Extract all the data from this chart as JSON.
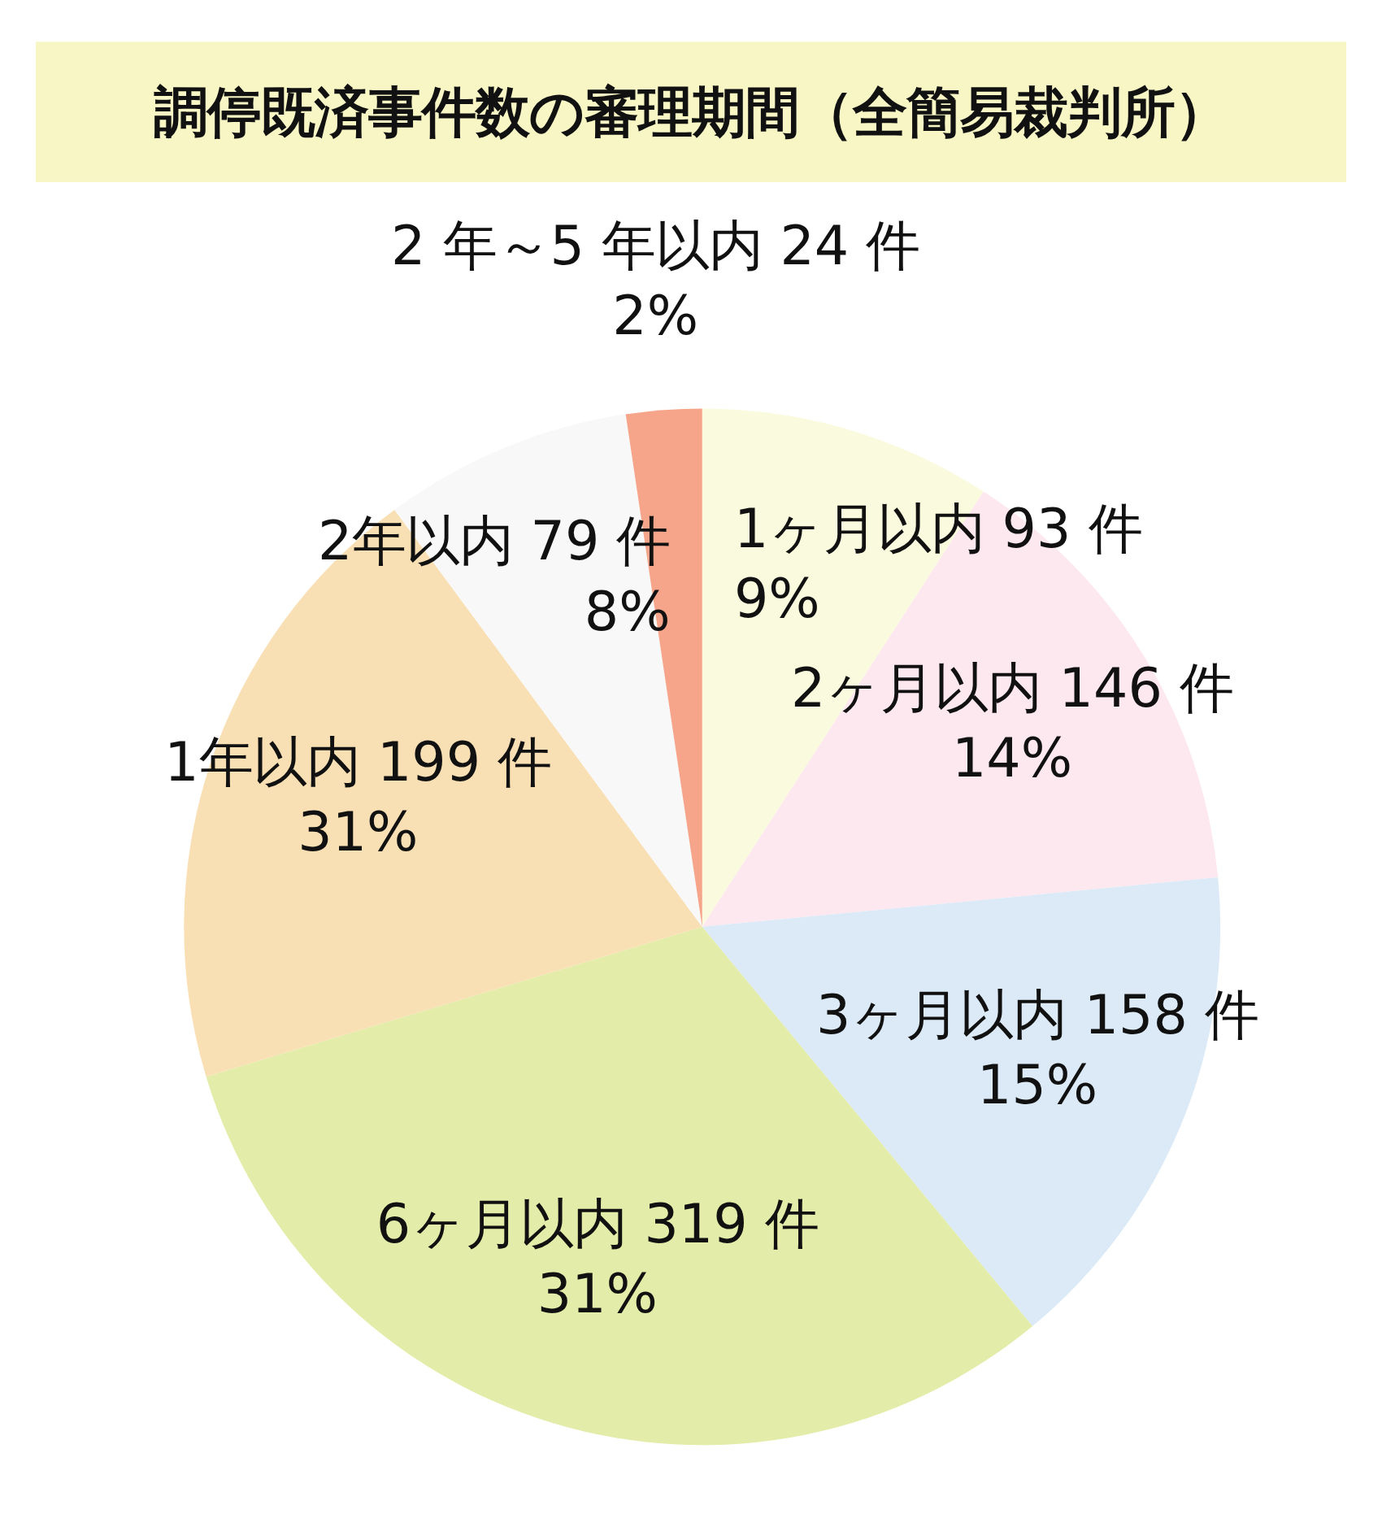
{
  "chart_data": {
    "type": "pie",
    "title": "調停既済事件数の審理期間（全簡易裁判所）",
    "categories": [
      "1ヶ月以内",
      "2ヶ月以内",
      "3ヶ月以内",
      "6ヶ月以内",
      "1年以内",
      "2年以内",
      "2 年～5 年以内"
    ],
    "values": [
      93,
      146,
      158,
      319,
      199,
      79,
      24
    ],
    "colors": [
      "#fafade",
      "#fde8ef",
      "#dbeaf6",
      "#e3eca8",
      "#f9e0b4",
      "#f8f8f8",
      "#f7a58a"
    ],
    "value_labels": [
      "93 件\n9%",
      "146 件\n14%",
      "158 件\n15%",
      "319 件\n31%",
      "199 件\n31%",
      "79 件\n8%",
      "24 件\n2%"
    ]
  }
}
